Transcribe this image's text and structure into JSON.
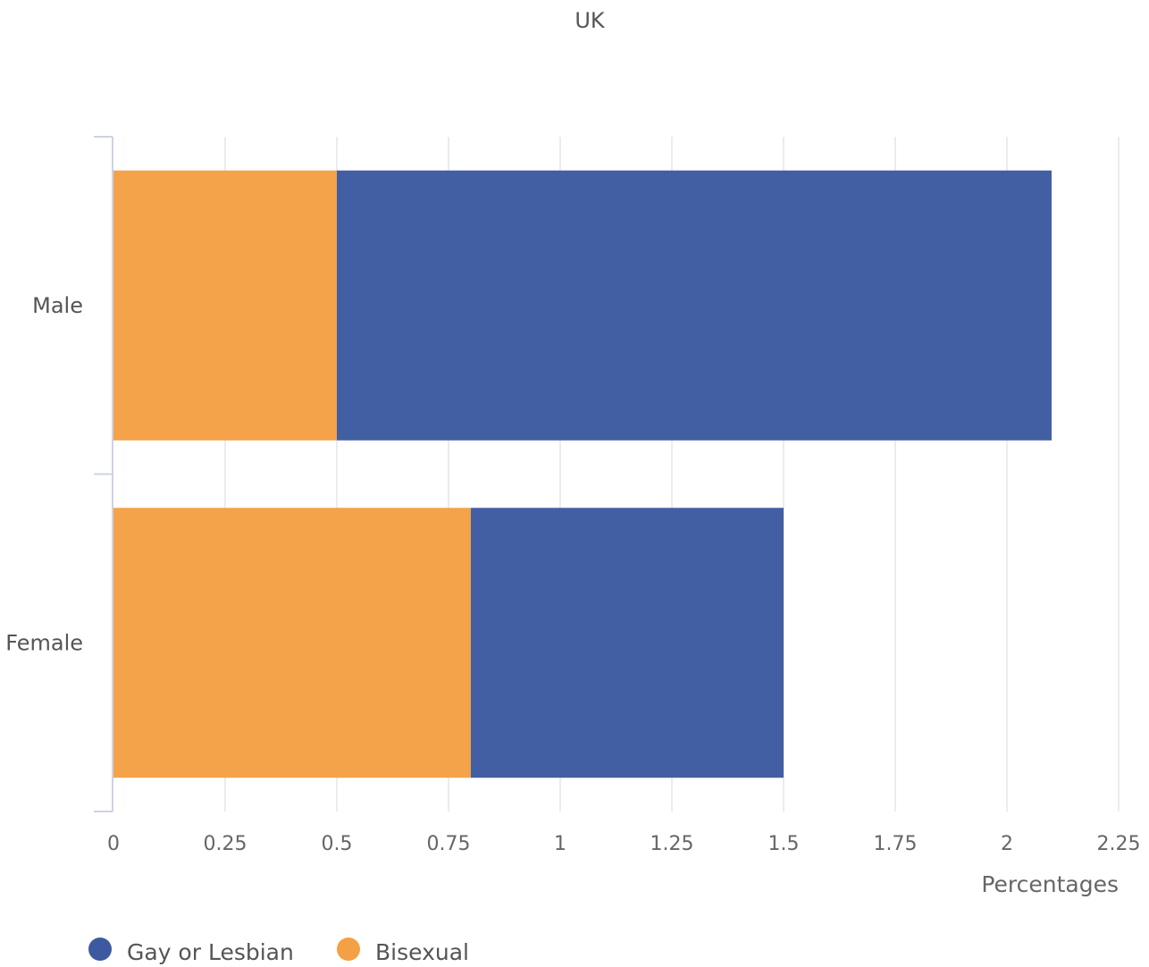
{
  "chart_data": {
    "type": "bar",
    "orientation": "horizontal",
    "stacked": true,
    "title": "UK",
    "xlabel": "Percentages",
    "ylabel": "",
    "categories": [
      "Male",
      "Female"
    ],
    "xlim": [
      0,
      2.25
    ],
    "x_ticks": [
      "0",
      "0.25",
      "0.5",
      "0.75",
      "1",
      "1.25",
      "1.5",
      "1.75",
      "2",
      "2.25"
    ],
    "grid": true,
    "legend_position": "bottom-left",
    "series": [
      {
        "name": "Bisexual",
        "values": [
          0.5,
          0.8
        ],
        "color": "#f4a044"
      },
      {
        "name": "Gay or Lesbian",
        "values": [
          1.6,
          0.7
        ],
        "color": "#3d5aa0"
      }
    ],
    "legend": [
      {
        "name": "Gay or Lesbian",
        "color": "#3d5aa0"
      },
      {
        "name": "Bisexual",
        "color": "#f4a044"
      }
    ]
  }
}
